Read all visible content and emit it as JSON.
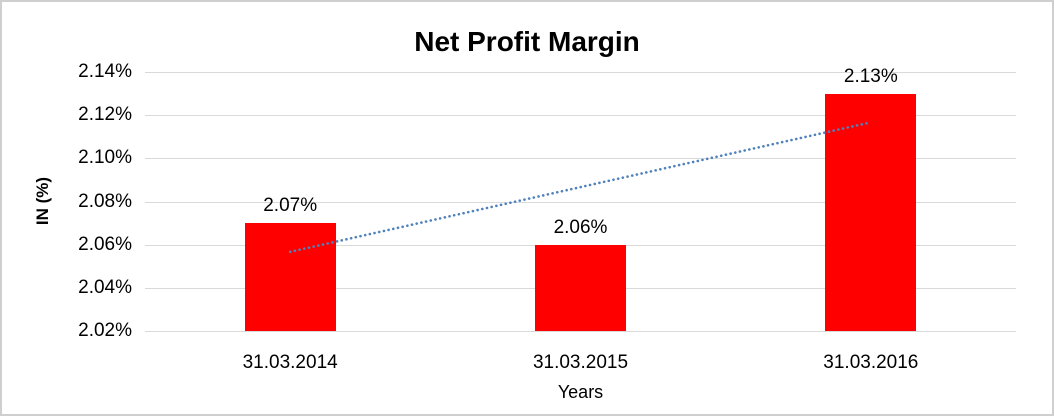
{
  "chart_data": {
    "type": "bar",
    "title": "Net Profit Margin",
    "categories": [
      "31.03.2014",
      "31.03.2015",
      "31.03.2016"
    ],
    "values": [
      2.07,
      2.06,
      2.13
    ],
    "data_labels": [
      "2.07%",
      "2.06%",
      "2.13%"
    ],
    "xlabel": "Years",
    "ylabel": "IN (%)",
    "ylim": [
      2.02,
      2.14
    ],
    "ytick_step": 0.02,
    "ytick_labels": [
      "2.14%",
      "2.12%",
      "2.10%",
      "2.08%",
      "2.06%",
      "2.04%",
      "2.02%"
    ],
    "grid": true,
    "legend": false,
    "bar_color": "#ff0000",
    "gridline_color": "#d9d9d9",
    "frame_border_color": "#cfcfcf",
    "trendline": {
      "type": "linear",
      "style": "dotted",
      "color": "#4f81bd"
    }
  }
}
